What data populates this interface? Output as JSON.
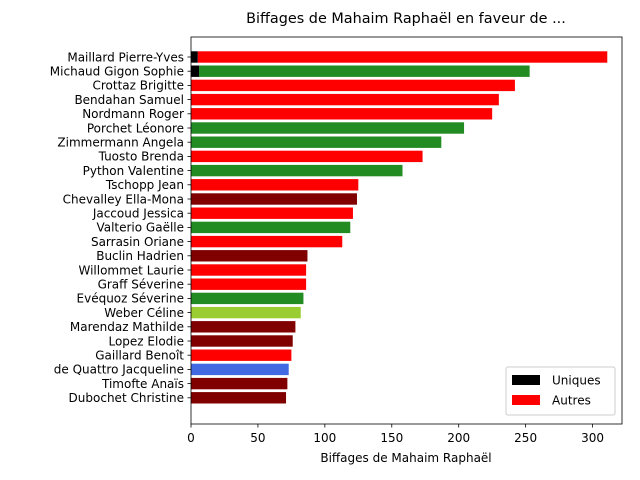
{
  "chart_data": {
    "type": "bar",
    "orientation": "horizontal",
    "title": "Biffages de Mahaim Raphaël en faveur de ...",
    "xlabel": "Biffages de Mahaim Raphaël",
    "ylabel": "",
    "xlim": [
      0,
      322
    ],
    "xticks": [
      0,
      50,
      100,
      150,
      200,
      250,
      300
    ],
    "grid": false,
    "legend_position": "bottom-right",
    "legend": [
      {
        "label": "Uniques",
        "color": "#000000"
      },
      {
        "label": "Autres",
        "color": "#ff0000"
      }
    ],
    "categories": [
      "Maillard Pierre-Yves",
      "Michaud Gigon Sophie",
      "Crottaz Brigitte",
      "Bendahan Samuel",
      "Nordmann Roger",
      "Porchet Léonore",
      "Zimmermann Angela",
      "Tuosto Brenda",
      "Python Valentine",
      "Tschopp Jean",
      "Chevalley Ella-Mona",
      "Jaccoud Jessica",
      "Valterio Gaëlle",
      "Sarrasin Oriane",
      "Buclin Hadrien",
      "Willommet Laurie",
      "Graff Séverine",
      "Evéquoz Séverine",
      "Weber Céline",
      "Marendaz Mathilde",
      "Lopez Elodie",
      "Gaillard Benoît",
      "de Quattro Jacqueline",
      "Timofte Anaïs",
      "Dubochet Christine"
    ],
    "series": [
      {
        "name": "Uniques",
        "values": [
          5,
          6,
          0,
          0,
          0,
          0,
          0,
          0,
          0,
          0,
          0,
          0,
          0,
          0,
          0,
          0,
          0,
          0,
          0,
          0,
          0,
          0,
          0,
          0,
          0
        ]
      },
      {
        "name": "Autres",
        "values": [
          306,
          247,
          242,
          230,
          225,
          204,
          187,
          173,
          158,
          125,
          124,
          121,
          119,
          113,
          87,
          86,
          86,
          84,
          82,
          78,
          76,
          75,
          73,
          72,
          71
        ]
      }
    ],
    "bar_colors": [
      "#ff0000",
      "#228b22",
      "#ff0000",
      "#ff0000",
      "#ff0000",
      "#228b22",
      "#228b22",
      "#ff0000",
      "#228b22",
      "#ff0000",
      "#800000",
      "#ff0000",
      "#228b22",
      "#ff0000",
      "#800000",
      "#ff0000",
      "#ff0000",
      "#228b22",
      "#9acd32",
      "#800000",
      "#800000",
      "#ff0000",
      "#4169e1",
      "#800000",
      "#800000"
    ],
    "uniques_color": "#000000"
  }
}
